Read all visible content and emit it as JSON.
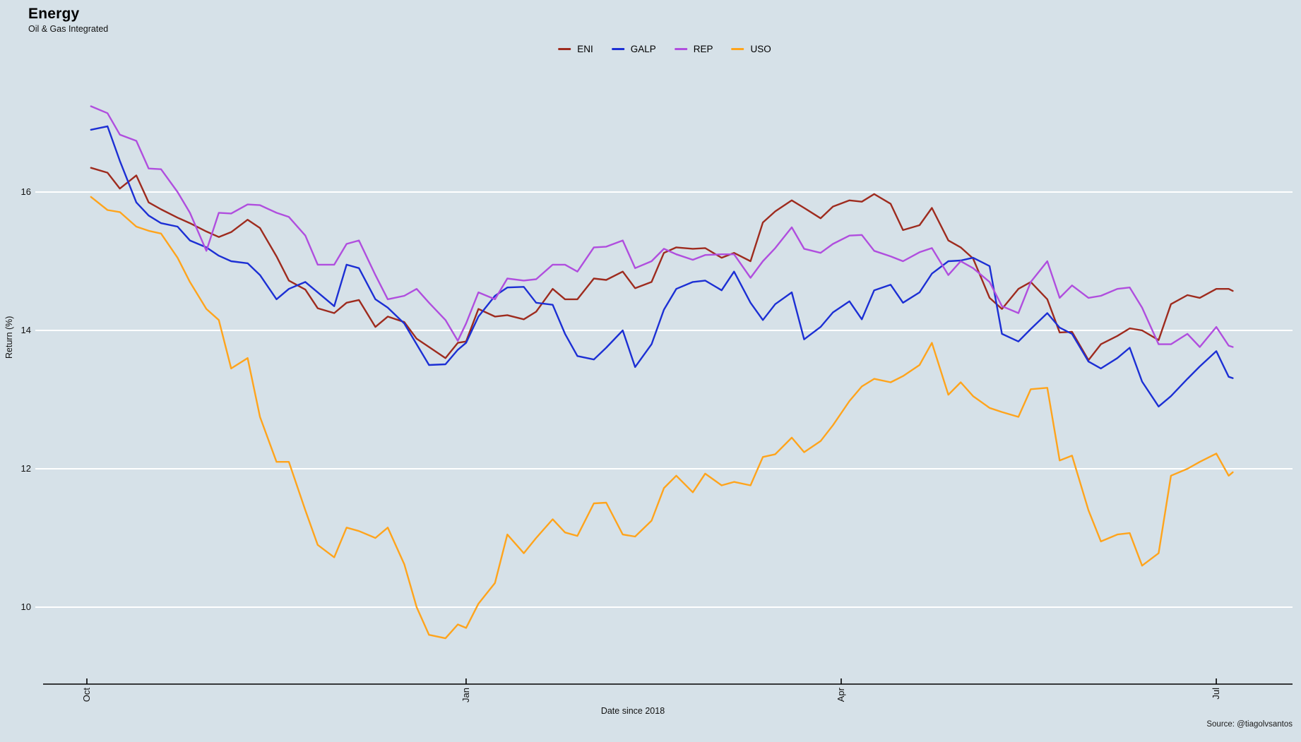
{
  "page": {
    "title": "Energy",
    "subtitle": "Oil & Gas Integrated",
    "source": "Source: @tiagolvsantos"
  },
  "chart_data": {
    "type": "line",
    "title": "Energy",
    "subtitle": "Oil & Gas Integrated",
    "xlabel": "Date since 2018",
    "ylabel": "Return (%)",
    "x_unit": "days since 2018-10-01",
    "x_range_days": [
      1,
      278
    ],
    "ylim": [
      8.9,
      17.6
    ],
    "grid": "horizontal-white",
    "legend_position": "top-center",
    "background_color": "#d6e1e8",
    "gridline_color": "#ffffff",
    "axis_color": "#000000",
    "yticks": [
      {
        "label": "16",
        "value": 16
      },
      {
        "label": "14",
        "value": 14
      },
      {
        "label": "12",
        "value": 12
      },
      {
        "label": "10",
        "value": 10
      }
    ],
    "xticks": [
      {
        "label": "Oct",
        "day": 0
      },
      {
        "label": "Jan",
        "day": 92
      },
      {
        "label": "Apr",
        "day": 183
      },
      {
        "label": "Jul",
        "day": 274
      }
    ],
    "days": [
      1,
      5,
      8,
      12,
      15,
      18,
      22,
      25,
      29,
      32,
      35,
      39,
      42,
      46,
      49,
      53,
      56,
      60,
      63,
      66,
      70,
      73,
      77,
      80,
      83,
      87,
      90,
      92,
      95,
      99,
      102,
      106,
      109,
      113,
      116,
      119,
      123,
      126,
      130,
      133,
      137,
      140,
      143,
      147,
      150,
      154,
      157,
      161,
      164,
      167,
      171,
      174,
      178,
      181,
      185,
      188,
      191,
      195,
      198,
      202,
      205,
      209,
      212,
      215,
      219,
      222,
      226,
      229,
      233,
      236,
      239,
      243,
      246,
      250,
      253,
      256,
      260,
      263,
      267,
      270,
      274,
      277,
      278
    ],
    "series": [
      {
        "name": "ENI",
        "color": "#9e2b1e",
        "values": [
          16.35,
          16.28,
          16.05,
          16.24,
          15.85,
          15.75,
          15.63,
          15.55,
          15.43,
          15.35,
          15.42,
          15.6,
          15.48,
          15.07,
          14.72,
          14.59,
          14.32,
          14.25,
          14.4,
          14.44,
          14.05,
          14.2,
          14.12,
          13.88,
          13.76,
          13.6,
          13.82,
          13.84,
          14.31,
          14.2,
          14.22,
          14.16,
          14.27,
          14.6,
          14.45,
          14.45,
          14.75,
          14.73,
          14.85,
          14.61,
          14.7,
          15.12,
          15.2,
          15.18,
          15.19,
          15.05,
          15.12,
          15.0,
          15.56,
          15.72,
          15.88,
          15.77,
          15.62,
          15.79,
          15.88,
          15.86,
          15.97,
          15.83,
          15.45,
          15.52,
          15.77,
          15.3,
          15.2,
          15.04,
          14.47,
          14.31,
          14.6,
          14.7,
          14.45,
          13.97,
          13.98,
          13.57,
          13.8,
          13.92,
          14.03,
          14.0,
          13.86,
          14.38,
          14.51,
          14.47,
          14.6,
          14.6,
          14.57
        ]
      },
      {
        "name": "GALP",
        "color": "#1c2fd4",
        "values": [
          16.9,
          16.95,
          16.45,
          15.85,
          15.66,
          15.55,
          15.5,
          15.3,
          15.2,
          15.08,
          15.0,
          14.97,
          14.8,
          14.45,
          14.6,
          14.7,
          14.55,
          14.35,
          14.95,
          14.9,
          14.45,
          14.33,
          14.1,
          13.8,
          13.5,
          13.51,
          13.72,
          13.82,
          14.2,
          14.5,
          14.62,
          14.63,
          14.4,
          14.37,
          13.95,
          13.63,
          13.58,
          13.75,
          14.0,
          13.47,
          13.8,
          14.3,
          14.6,
          14.7,
          14.72,
          14.58,
          14.85,
          14.4,
          14.15,
          14.38,
          14.55,
          13.87,
          14.05,
          14.26,
          14.42,
          14.16,
          14.58,
          14.66,
          14.4,
          14.55,
          14.82,
          15.0,
          15.01,
          15.05,
          14.93,
          13.95,
          13.84,
          14.02,
          14.25,
          14.04,
          13.95,
          13.55,
          13.45,
          13.6,
          13.75,
          13.26,
          12.9,
          13.05,
          13.3,
          13.48,
          13.7,
          13.33,
          13.31
        ]
      },
      {
        "name": "REP",
        "color": "#b04ede",
        "values": [
          17.24,
          17.14,
          16.83,
          16.74,
          16.34,
          16.33,
          16.0,
          15.7,
          15.15,
          15.7,
          15.69,
          15.82,
          15.81,
          15.7,
          15.64,
          15.37,
          14.95,
          14.95,
          15.25,
          15.3,
          14.8,
          14.45,
          14.5,
          14.6,
          14.4,
          14.15,
          13.85,
          14.1,
          14.55,
          14.45,
          14.75,
          14.72,
          14.74,
          14.95,
          14.95,
          14.85,
          15.2,
          15.21,
          15.3,
          14.9,
          15.0,
          15.18,
          15.1,
          15.02,
          15.09,
          15.1,
          15.1,
          14.76,
          15.0,
          15.19,
          15.49,
          15.18,
          15.12,
          15.25,
          15.37,
          15.38,
          15.15,
          15.07,
          15.0,
          15.13,
          15.19,
          14.8,
          15.0,
          14.9,
          14.7,
          14.35,
          14.25,
          14.7,
          15.0,
          14.47,
          14.65,
          14.47,
          14.5,
          14.6,
          14.62,
          14.33,
          13.8,
          13.8,
          13.95,
          13.76,
          14.05,
          13.78,
          13.76
        ]
      },
      {
        "name": "USO",
        "color": "#ffa41c",
        "values": [
          15.93,
          15.74,
          15.71,
          15.5,
          15.44,
          15.4,
          15.05,
          14.7,
          14.31,
          14.15,
          13.45,
          13.6,
          12.75,
          12.1,
          12.1,
          11.4,
          10.9,
          10.72,
          11.15,
          11.1,
          11.0,
          11.15,
          10.62,
          10.0,
          9.6,
          9.55,
          9.75,
          9.7,
          10.05,
          10.35,
          11.05,
          10.78,
          11.0,
          11.27,
          11.08,
          11.03,
          11.5,
          11.51,
          11.05,
          11.02,
          11.25,
          11.72,
          11.9,
          11.66,
          11.93,
          11.76,
          11.81,
          11.76,
          12.17,
          12.21,
          12.45,
          12.24,
          12.4,
          12.63,
          12.98,
          13.19,
          13.3,
          13.25,
          13.34,
          13.5,
          13.82,
          13.07,
          13.25,
          13.05,
          12.88,
          12.82,
          12.75,
          13.15,
          13.17,
          12.12,
          12.19,
          11.4,
          10.95,
          11.05,
          11.07,
          10.6,
          10.78,
          11.9,
          12.0,
          12.1,
          12.22,
          11.9,
          11.95
        ]
      }
    ]
  }
}
